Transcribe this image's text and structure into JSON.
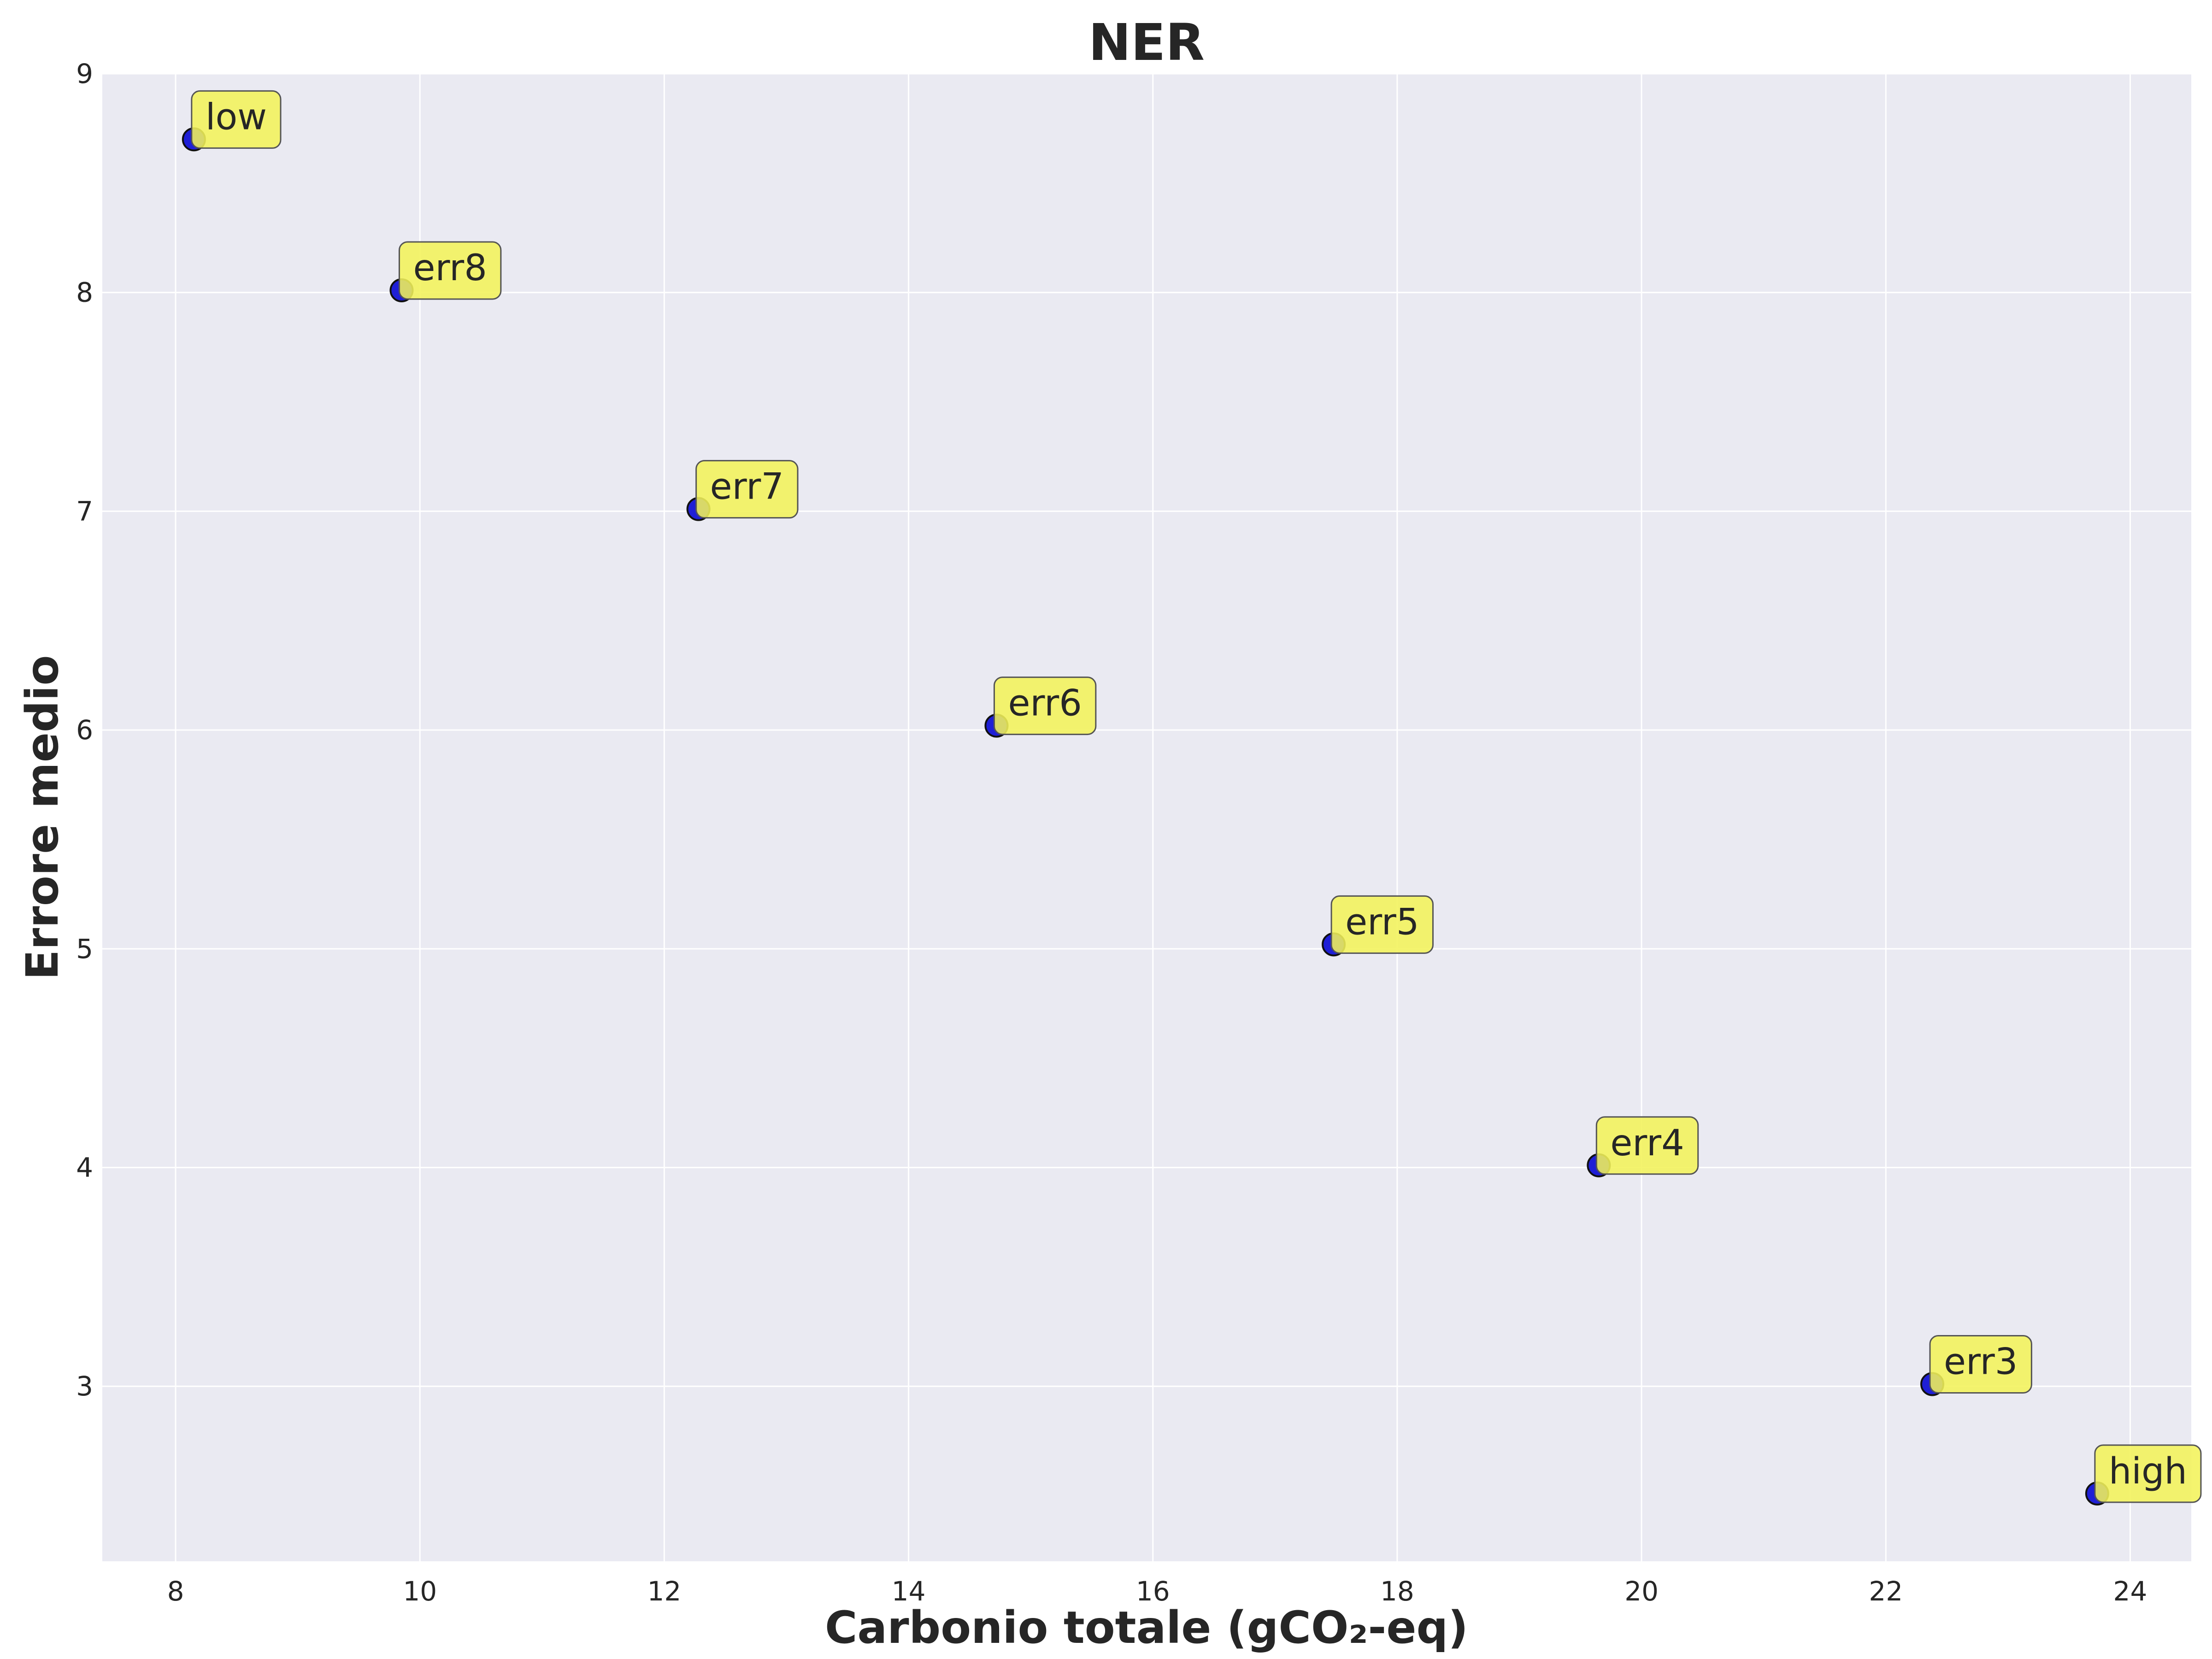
{
  "chart_data": {
    "type": "scatter",
    "title": "NER",
    "xlabel": "Carbonio totale (gCO₂-eq)",
    "ylabel": "Errore medio",
    "xlim": [
      7.4,
      24.5
    ],
    "ylim": [
      2.2,
      9.0
    ],
    "xticks": [
      "8",
      "10",
      "12",
      "14",
      "16",
      "18",
      "20",
      "22",
      "24"
    ],
    "yticks": [
      "3",
      "4",
      "5",
      "6",
      "7",
      "8",
      "9"
    ],
    "grid": true,
    "colors": {
      "background": "#eaeaf2",
      "point_fill": "#1f1fd6",
      "annotation_fill": "#f2f25a"
    },
    "points": [
      {
        "label": "low",
        "x": 8.15,
        "y": 8.7
      },
      {
        "label": "err8",
        "x": 9.85,
        "y": 8.01
      },
      {
        "label": "err7",
        "x": 12.28,
        "y": 7.01
      },
      {
        "label": "err6",
        "x": 14.72,
        "y": 6.02
      },
      {
        "label": "err5",
        "x": 17.48,
        "y": 5.02
      },
      {
        "label": "err4",
        "x": 19.65,
        "y": 4.01
      },
      {
        "label": "err3",
        "x": 22.38,
        "y": 3.01
      },
      {
        "label": "high",
        "x": 23.73,
        "y": 2.51
      }
    ]
  }
}
